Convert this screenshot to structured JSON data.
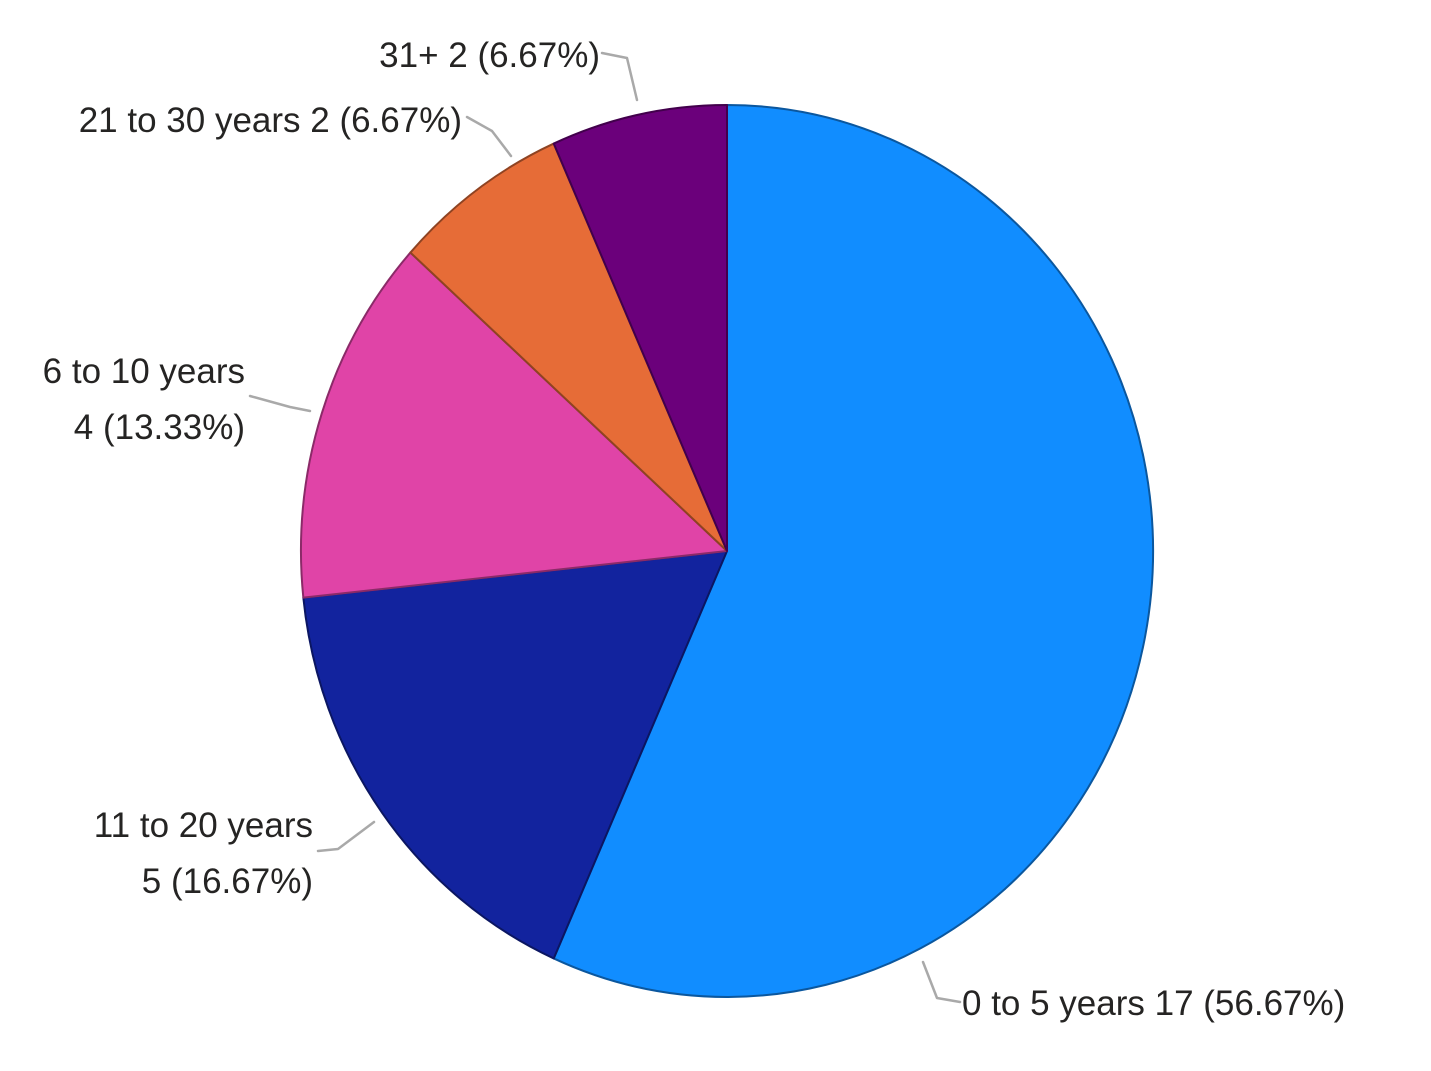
{
  "chart_data": {
    "type": "pie",
    "title": "",
    "legend": "none",
    "background": "#FFFFFF",
    "label_color": "#252423",
    "leader_line_color": "#A9A9A9",
    "total": 30,
    "start_angle_deg": 0,
    "direction": "clockwise",
    "slices": [
      {
        "category": "0 to 5 years",
        "value": 17,
        "pct": "56.67",
        "color": "#118DFF",
        "label": "0 to 5 years 17 (56.67%)"
      },
      {
        "category": "11 to 20 years",
        "value": 5,
        "pct": "16.67",
        "color": "#12239E",
        "label": "11 to 20 years\n5 (16.67%)"
      },
      {
        "category": "6 to 10 years",
        "value": 4,
        "pct": "13.33",
        "color": "#E044A7",
        "label": "6 to 10 years\n4 (13.33%)"
      },
      {
        "category": "21 to 30 years",
        "value": 2,
        "pct": "6.67",
        "color": "#E66C37",
        "label": "21 to 30 years 2 (6.67%)"
      },
      {
        "category": "31+",
        "value": 2,
        "pct": "6.67",
        "color": "#6B007B",
        "label": "31+ 2 (6.67%)"
      }
    ]
  }
}
